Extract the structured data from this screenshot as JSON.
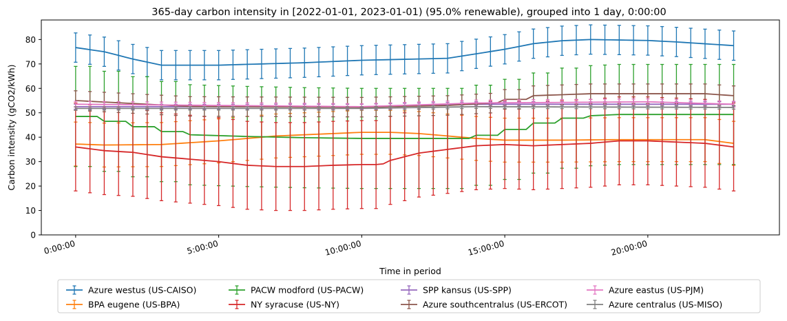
{
  "chart_data": {
    "type": "line",
    "title": "365-day carbon intensity in [2022-01-01, 2023-01-01) (95.0% renewable), grouped into 1 day, 0:00:00",
    "xlabel": "Time in period",
    "ylabel": "Carbon intensity (gCO2/kWh)",
    "x_unit": "hours",
    "xlim": [
      -1.2,
      24.6
    ],
    "ylim": [
      0,
      88
    ],
    "x_ticks": [
      0,
      5,
      10,
      15,
      20
    ],
    "x_tick_labels": [
      "0:00:00",
      "5:00:00",
      "10:00:00",
      "15:00:00",
      "20:00:00"
    ],
    "y_ticks": [
      0,
      10,
      20,
      30,
      40,
      50,
      60,
      70,
      80
    ],
    "y_tick_labels": [
      "0",
      "10",
      "20",
      "30",
      "40",
      "50",
      "60",
      "70",
      "80"
    ],
    "grid": false,
    "legend_position": "below plot, 4 columns",
    "x_interval_hours": 0.25,
    "series": [
      {
        "name": "Azure westus (US-CAISO)",
        "color": "#1f77b4",
        "keypoints": [
          [
            0,
            76.7
          ],
          [
            1,
            75
          ],
          [
            2,
            72
          ],
          [
            3,
            69.5
          ],
          [
            5,
            69.5
          ],
          [
            8,
            70.5
          ],
          [
            10,
            71.5
          ],
          [
            13,
            72.3
          ],
          [
            15,
            76
          ],
          [
            16,
            78.3
          ],
          [
            17,
            79.5
          ],
          [
            18,
            80
          ],
          [
            20,
            79.6
          ],
          [
            21,
            79
          ],
          [
            23,
            77.5
          ]
        ],
        "error": 6
      },
      {
        "name": "BPA eugene (US-BPA)",
        "color": "#ff7f0e",
        "keypoints": [
          [
            0,
            37.2
          ],
          [
            1,
            36.8
          ],
          [
            3,
            37
          ],
          [
            5,
            38.5
          ],
          [
            7,
            40.5
          ],
          [
            9,
            41.5
          ],
          [
            10,
            42
          ],
          [
            11,
            42
          ],
          [
            12,
            41.5
          ],
          [
            13,
            40.5
          ],
          [
            14,
            39.5
          ],
          [
            15,
            38.8
          ],
          [
            17,
            38.8
          ],
          [
            19,
            39
          ],
          [
            22,
            39
          ],
          [
            23,
            37.5
          ]
        ],
        "error": 9
      },
      {
        "name": "PACW modford (US-PACW)",
        "color": "#2ca02c",
        "keypoints": [
          [
            0,
            48.5
          ],
          [
            0.9,
            48.5
          ],
          [
            1,
            46.5
          ],
          [
            1.9,
            46.5
          ],
          [
            2,
            44.3
          ],
          [
            2.9,
            44.3
          ],
          [
            3,
            42.3
          ],
          [
            3.9,
            42.3
          ],
          [
            4,
            41
          ],
          [
            6,
            40.3
          ],
          [
            8,
            39.8
          ],
          [
            10,
            39.5
          ],
          [
            13,
            39.5
          ],
          [
            13.9,
            39.5
          ],
          [
            14,
            40.8
          ],
          [
            14.9,
            40.8
          ],
          [
            15,
            43.2
          ],
          [
            15.9,
            43.2
          ],
          [
            16,
            45.8
          ],
          [
            16.9,
            45.8
          ],
          [
            17,
            47.8
          ],
          [
            17.9,
            47.8
          ],
          [
            18,
            48.8
          ],
          [
            19,
            49.3
          ],
          [
            23,
            49.3
          ]
        ],
        "error": 20.5
      },
      {
        "name": "NY syracuse (US-NY)",
        "color": "#d62728",
        "keypoints": [
          [
            0,
            36
          ],
          [
            1,
            34.5
          ],
          [
            2,
            33.8
          ],
          [
            3,
            32
          ],
          [
            4,
            31
          ],
          [
            5,
            30
          ],
          [
            6,
            28.5
          ],
          [
            7,
            28
          ],
          [
            8,
            28
          ],
          [
            9,
            28.5
          ],
          [
            10,
            28.8
          ],
          [
            10.7,
            28.8
          ],
          [
            11,
            30.5
          ],
          [
            12,
            33.5
          ],
          [
            13,
            35
          ],
          [
            14,
            36.5
          ],
          [
            15,
            37
          ],
          [
            16,
            36.5
          ],
          [
            17,
            37
          ],
          [
            18,
            37.5
          ],
          [
            19,
            38.5
          ],
          [
            20,
            38.5
          ],
          [
            21,
            38
          ],
          [
            22,
            37.5
          ],
          [
            23,
            36
          ]
        ],
        "error": 18
      },
      {
        "name": "SPP kansus (US-SPP)",
        "color": "#9467bd",
        "keypoints": [
          [
            0,
            52.5
          ],
          [
            10,
            52.5
          ],
          [
            14,
            53.5
          ],
          [
            23,
            53.5
          ]
        ],
        "error": 1
      },
      {
        "name": "Azure southcentralus (US-ERCOT)",
        "color": "#8c564b",
        "keypoints": [
          [
            0,
            55
          ],
          [
            2,
            53.8
          ],
          [
            4,
            52.6
          ],
          [
            10,
            52.3
          ],
          [
            13,
            53
          ],
          [
            14.9,
            54.2
          ],
          [
            15,
            55.5
          ],
          [
            15.9,
            55.5
          ],
          [
            16,
            57
          ],
          [
            18,
            57.8
          ],
          [
            22,
            57.8
          ],
          [
            23,
            57
          ]
        ],
        "error": 4
      },
      {
        "name": "Azure eastus (US-PJM)",
        "color": "#e377c2",
        "keypoints": [
          [
            0,
            53.5
          ],
          [
            10,
            52.5
          ],
          [
            14,
            54
          ],
          [
            20,
            54.5
          ],
          [
            23,
            53.5
          ]
        ],
        "error": 1.2
      },
      {
        "name": "Azure centralus (US-MISO)",
        "color": "#7f7f7f",
        "keypoints": [
          [
            0,
            51.8
          ],
          [
            10,
            51.8
          ],
          [
            14,
            52.5
          ],
          [
            23,
            52.2
          ]
        ],
        "error": 0.7
      }
    ]
  }
}
